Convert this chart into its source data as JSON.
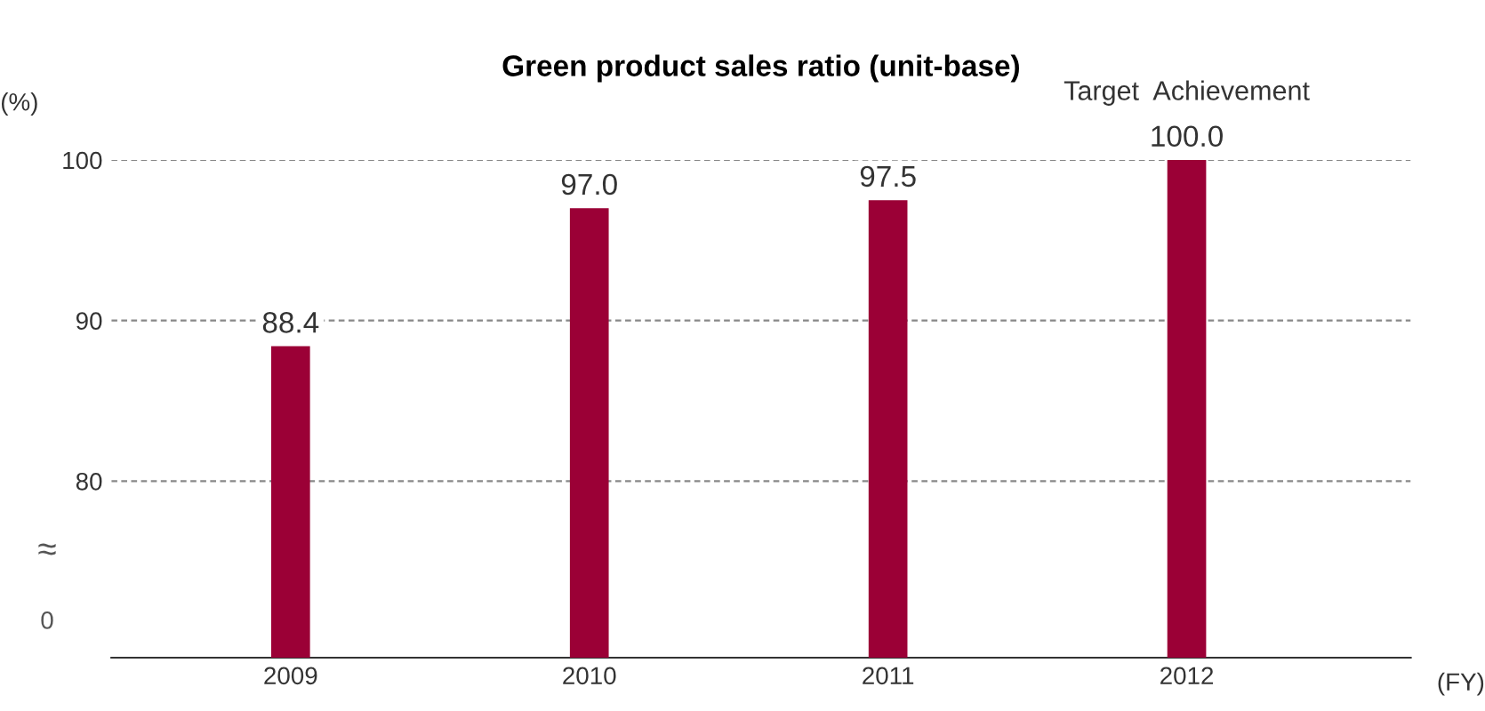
{
  "chart_data": {
    "type": "bar",
    "title": "Green product sales ratio (unit-base)",
    "ylabel": "(%)",
    "xlabel": "(FY)",
    "categories": [
      "2009",
      "2010",
      "2011",
      "2012"
    ],
    "values": [
      88.4,
      97.0,
      97.5,
      100.0
    ],
    "color": "#9b0036",
    "value_labels": [
      "88.4",
      "97.0",
      "97.5",
      "100.0"
    ],
    "ylim": [
      69,
      100
    ],
    "yticks": [
      80,
      90,
      100
    ],
    "grid": "y",
    "annotations": [
      {
        "text": "Target  Achievement",
        "x": "2012",
        "y": 100
      },
      "≈",
      "0"
    ]
  }
}
